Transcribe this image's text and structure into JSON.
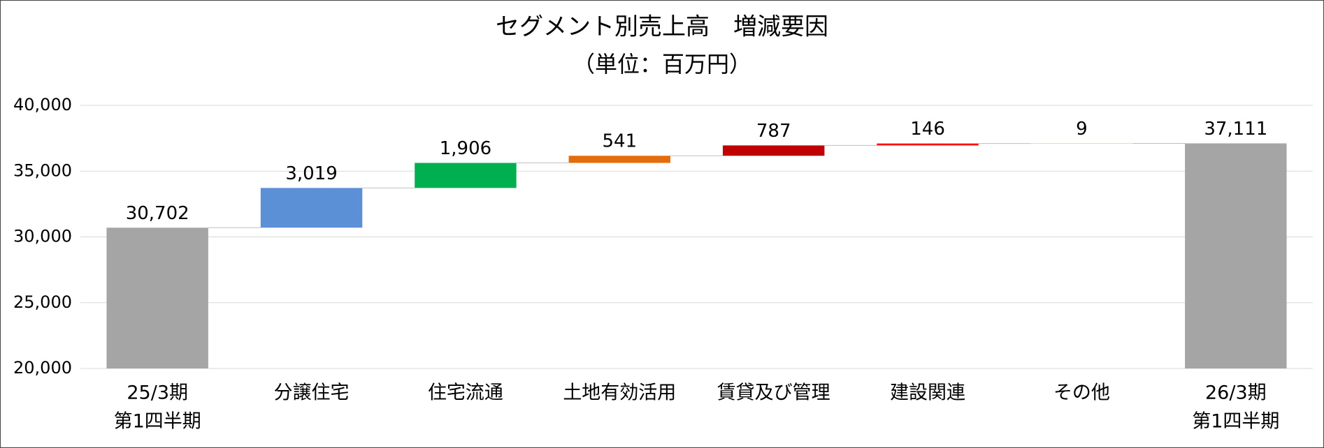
{
  "chart_data": {
    "type": "waterfall",
    "title": "セグメント別売上高　増減要因",
    "subtitle": "（単位：百万円）",
    "categories": [
      [
        "25/3期",
        "第1四半期"
      ],
      [
        "分譲住宅"
      ],
      [
        "住宅流通"
      ],
      [
        "土地有効活用"
      ],
      [
        "賃貸及び管理"
      ],
      [
        "建設関連"
      ],
      [
        "その他"
      ],
      [
        "26/3期",
        "第1四半期"
      ]
    ],
    "values": [
      30702,
      3019,
      1906,
      541,
      787,
      146,
      9,
      37111
    ],
    "value_labels": [
      "30,702",
      "3,019",
      "1,906",
      "541",
      "787",
      "146",
      "9",
      "37,111"
    ],
    "is_total": [
      true,
      false,
      false,
      false,
      false,
      false,
      false,
      true
    ],
    "colors": [
      "#a5a5a5",
      "#5b8fd6",
      "#00b050",
      "#e46c0a",
      "#c00000",
      "#ff0000",
      "#ffc000",
      "#a5a5a5"
    ],
    "ylim": [
      20000,
      40000
    ],
    "yticks": [
      {
        "value": 20000,
        "label": "20,000"
      },
      {
        "value": 25000,
        "label": "25,000"
      },
      {
        "value": 30000,
        "label": "30,000"
      },
      {
        "value": 35000,
        "label": "35,000"
      },
      {
        "value": 40000,
        "label": "40,000"
      }
    ],
    "grid": true
  }
}
